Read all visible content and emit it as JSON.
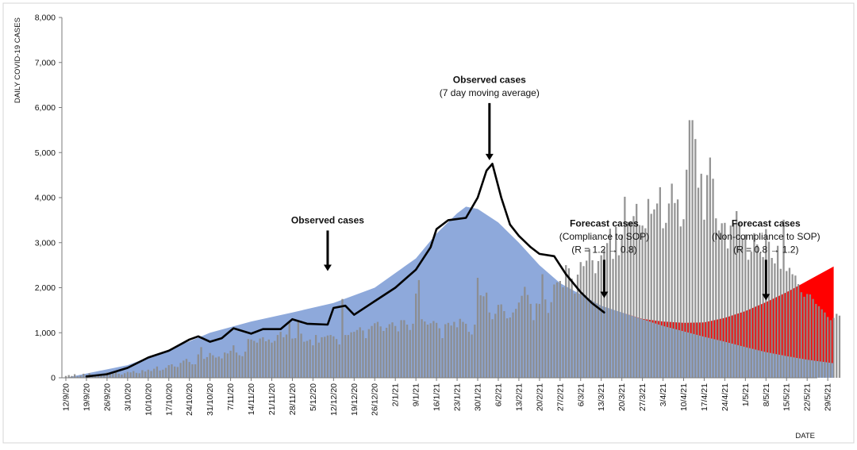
{
  "chart_data": {
    "type": "bar",
    "ylabel": "DAILY COVID-19 CASES",
    "xlabel": "DATE",
    "ylim": [
      0,
      8000
    ],
    "yticks": [
      "0",
      "1,000",
      "2,000",
      "3,000",
      "4,000",
      "5,000",
      "6,000",
      "7,000",
      "8,000"
    ],
    "x_tick_labels": [
      "12/9/20",
      "19/9/20",
      "26/9/20",
      "3/10/20",
      "10/10/20",
      "17/10/20",
      "24/10/20",
      "31/10/20",
      "7/11/20",
      "14/11/20",
      "21/11/20",
      "28/11/20",
      "5/12/20",
      "12/12/20",
      "19/12/20",
      "26/12/20",
      "2/1/21",
      "9/1/21",
      "16/1/21",
      "23/1/21",
      "30/1/21",
      "6/2/21",
      "13/2/21",
      "20/2/21",
      "27/2/21",
      "6/3/21",
      "13/3/21",
      "20/3/21",
      "27/3/21",
      "3/4/21",
      "10/4/21",
      "17/4/21",
      "24/4/21",
      "1/5/21",
      "8/5/21",
      "15/5/21",
      "22/5/21",
      "29/5/21"
    ],
    "x_range": [
      "12/9/20",
      "31/5/21"
    ],
    "grid": false,
    "series": [
      {
        "name": "Observed cases",
        "kind": "bar",
        "color": "#8c8c8c",
        "x_start": "12/9/20",
        "x_end": "14/3/21",
        "x_step_days": 1,
        "values": [
          40,
          60,
          40,
          80,
          30,
          50,
          90,
          60,
          100,
          40,
          70,
          50,
          90,
          60,
          120,
          80,
          110,
          140,
          90,
          70,
          100,
          130,
          120,
          150,
          110,
          100,
          170,
          140,
          180,
          150,
          200,
          250,
          160,
          180,
          220,
          280,
          300,
          250,
          240,
          330,
          380,
          420,
          350,
          300,
          300,
          520,
          680,
          420,
          460,
          550,
          500,
          450,
          470,
          430,
          560,
          540,
          600,
          720,
          560,
          500,
          480,
          580,
          860,
          850,
          820,
          780,
          870,
          900,
          810,
          850,
          780,
          820,
          950,
          1020,
          900,
          960,
          1230,
          870,
          880,
          1240,
          980,
          800,
          820,
          850,
          720,
          950,
          780,
          900,
          910,
          940,
          950,
          920,
          860,
          740,
          1750,
          950,
          950,
          1010,
          1020,
          1060,
          1120,
          1050,
          880,
          1080,
          1150,
          1210,
          1240,
          1140,
          1040,
          1110,
          1190,
          1230,
          1150,
          1030,
          1280,
          1280,
          1180,
          1060,
          1200,
          1870,
          2170,
          1300,
          1250,
          1180,
          1210,
          1260,
          1220,
          1100,
          880,
          1190,
          1220,
          1160,
          1240,
          1120,
          1310,
          1240,
          1200,
          1020,
          960,
          1180,
          2220,
          1830,
          1810,
          1890,
          1450,
          1300,
          1420,
          1620,
          1630,
          1480,
          1320,
          1340,
          1450,
          1530,
          1670,
          1820,
          2020,
          1840,
          1640,
          1280,
          1650,
          1640,
          2300,
          1740,
          1440,
          1680,
          2070,
          2120,
          2150,
          2010,
          2500,
          2430,
          2200,
          1870,
          2290,
          2570,
          2480,
          2600,
          2860,
          2610,
          2320,
          2590,
          2720,
          2850,
          2990,
          3310,
          2640,
          3350,
          2720,
          3180,
          4020,
          3460,
          3470,
          3590,
          3860,
          3390,
          3380,
          3320,
          3970,
          3640,
          3740,
          3870,
          4230,
          3320,
          3440,
          3870,
          4310,
          3880,
          3960,
          3360,
          3520,
          4620,
          5720,
          5720,
          5300,
          4220,
          4530,
          3510,
          4500,
          4890,
          4420,
          3540,
          3270,
          3430,
          3440,
          2870,
          3380,
          3430,
          3700,
          3460,
          3100,
          3180,
          2620,
          2800,
          3210,
          2960,
          2780,
          2680,
          3300,
          3020,
          2660,
          2540,
          2930,
          2420,
          3510,
          2370,
          2440,
          2300,
          2270,
          2080,
          1900,
          1800,
          1860,
          1850,
          1750,
          1640,
          1590,
          1520,
          1450,
          1350,
          1280,
          1330,
          1420,
          1380
        ]
      },
      {
        "name": "Observed cases (7 day moving average)",
        "kind": "line",
        "color": "#000000",
        "points": [
          [
            "19/9/20",
            30
          ],
          [
            "26/9/20",
            80
          ],
          [
            "3/10/20",
            220
          ],
          [
            "10/10/20",
            450
          ],
          [
            "17/10/20",
            600
          ],
          [
            "24/10/20",
            850
          ],
          [
            "27/10/20",
            920
          ],
          [
            "31/10/20",
            800
          ],
          [
            "4/11/20",
            880
          ],
          [
            "8/11/20",
            1100
          ],
          [
            "14/11/20",
            980
          ],
          [
            "18/11/20",
            1080
          ],
          [
            "24/11/20",
            1080
          ],
          [
            "28/11/20",
            1300
          ],
          [
            "3/12/20",
            1200
          ],
          [
            "10/12/20",
            1180
          ],
          [
            "12/12/20",
            1550
          ],
          [
            "16/12/20",
            1600
          ],
          [
            "19/12/20",
            1400
          ],
          [
            "26/12/20",
            1700
          ],
          [
            "2/1/21",
            2000
          ],
          [
            "9/1/21",
            2400
          ],
          [
            "14/1/21",
            2900
          ],
          [
            "16/1/21",
            3300
          ],
          [
            "20/1/21",
            3500
          ],
          [
            "26/1/21",
            3550
          ],
          [
            "30/1/21",
            4000
          ],
          [
            "2/2/21",
            4600
          ],
          [
            "4/2/21",
            4750
          ],
          [
            "7/2/21",
            4000
          ],
          [
            "10/2/21",
            3400
          ],
          [
            "13/2/21",
            3150
          ],
          [
            "17/2/21",
            2900
          ],
          [
            "20/2/21",
            2750
          ],
          [
            "25/2/21",
            2700
          ],
          [
            "1/3/21",
            2300
          ],
          [
            "6/3/21",
            1900
          ],
          [
            "10/3/21",
            1650
          ],
          [
            "14/3/21",
            1450
          ]
        ]
      },
      {
        "name": "Forecast cases (Compliance to SOP)",
        "kind": "area",
        "color": "#8ea9db",
        "points": [
          [
            "12/9/20",
            0
          ],
          [
            "3/10/20",
            280
          ],
          [
            "17/10/20",
            620
          ],
          [
            "31/10/20",
            1000
          ],
          [
            "14/11/20",
            1250
          ],
          [
            "28/11/20",
            1450
          ],
          [
            "12/12/20",
            1660
          ],
          [
            "26/12/20",
            2000
          ],
          [
            "9/1/21",
            2650
          ],
          [
            "16/1/21",
            3200
          ],
          [
            "23/1/21",
            3650
          ],
          [
            "26/1/21",
            3800
          ],
          [
            "30/1/21",
            3750
          ],
          [
            "6/2/21",
            3450
          ],
          [
            "13/2/21",
            3000
          ],
          [
            "20/2/21",
            2500
          ],
          [
            "27/2/21",
            2100
          ],
          [
            "6/3/21",
            1850
          ],
          [
            "13/3/21",
            1600
          ],
          [
            "20/3/21",
            1450
          ],
          [
            "27/3/21",
            1300
          ],
          [
            "3/4/21",
            1150
          ],
          [
            "10/4/21",
            1030
          ],
          [
            "17/4/21",
            910
          ],
          [
            "24/4/21",
            800
          ],
          [
            "1/5/21",
            680
          ],
          [
            "8/5/21",
            570
          ],
          [
            "15/5/21",
            480
          ],
          [
            "22/5/21",
            400
          ],
          [
            "31/5/21",
            320
          ]
        ]
      },
      {
        "name": "Forecast cases (Non-compliance to SOP)",
        "kind": "area",
        "color": "#ff0000",
        "points": [
          [
            "20/3/21",
            1450
          ],
          [
            "27/3/21",
            1310
          ],
          [
            "3/4/21",
            1250
          ],
          [
            "10/4/21",
            1220
          ],
          [
            "17/4/21",
            1230
          ],
          [
            "24/4/21",
            1330
          ],
          [
            "1/5/21",
            1480
          ],
          [
            "8/5/21",
            1680
          ],
          [
            "15/5/21",
            1900
          ],
          [
            "22/5/21",
            2150
          ],
          [
            "31/5/21",
            2470
          ]
        ]
      }
    ],
    "annotations": [
      {
        "lines": [
          "Observed cases"
        ],
        "bold": [
          true
        ],
        "arrow_date": "10/12/20",
        "arrow_from": 3270,
        "arrow_to": 2370
      },
      {
        "lines": [
          "Observed cases",
          "(7 day moving average)"
        ],
        "bold": [
          true,
          false
        ],
        "arrow_date": "3/2/21",
        "arrow_from": 6100,
        "arrow_to": 4830
      },
      {
        "lines": [
          "Forecast cases",
          "(Compliance to SOP)",
          "(R = 1.2 → 0.8)"
        ],
        "bold": [
          true,
          false,
          false
        ],
        "arrow_date": "14/3/21",
        "arrow_from": 2620,
        "arrow_to": 1770
      },
      {
        "lines": [
          "Forecast cases",
          "(Non-compliance to SOP)",
          "(R = 0.8 → 1.2)"
        ],
        "bold": [
          true,
          false,
          false
        ],
        "arrow_date": "8/5/21",
        "arrow_from": 2620,
        "arrow_to": 1720
      }
    ]
  }
}
